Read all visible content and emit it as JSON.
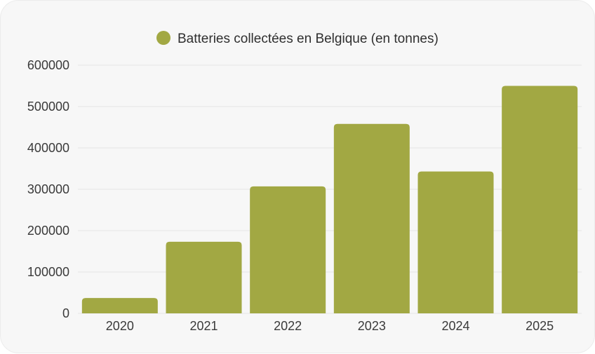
{
  "chart_data": {
    "type": "bar",
    "series": [
      {
        "name": "Batteries collectées en Belgique (en tonnes)",
        "values": [
          37000,
          173000,
          307000,
          458000,
          343000,
          550000
        ]
      }
    ],
    "categories": [
      "2020",
      "2021",
      "2022",
      "2023",
      "2024",
      "2025"
    ],
    "ylim": [
      0,
      600000
    ],
    "yticks": [
      "600000",
      "500000",
      "400000",
      "300000",
      "200000",
      "100000",
      "0"
    ],
    "grid": true,
    "legend_position": "top",
    "bar_color": "#a2a843",
    "grid_color": "#e4e4e4"
  }
}
